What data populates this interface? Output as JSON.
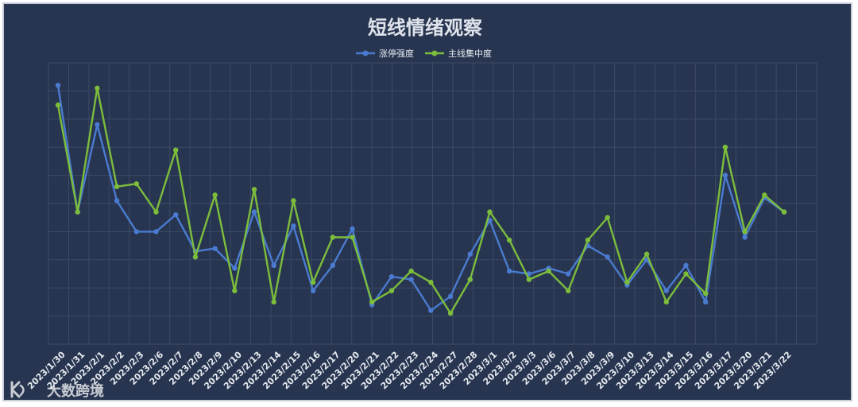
{
  "chart_data": {
    "type": "line",
    "title": "短线情绪观察",
    "xlabel": "",
    "ylabel": "",
    "ylim": [
      0,
      100
    ],
    "grid": true,
    "legend_position": "top-center",
    "categories": [
      "2023/1/30",
      "2023/1/31",
      "2023/2/1",
      "2023/2/2",
      "2023/2/3",
      "2023/2/6",
      "2023/2/7",
      "2023/2/8",
      "2023/2/9",
      "2023/2/10",
      "2023/2/13",
      "2023/2/14",
      "2023/2/15",
      "2023/2/16",
      "2023/2/17",
      "2023/2/20",
      "2023/2/21",
      "2023/2/22",
      "2023/2/23",
      "2023/2/24",
      "2023/2/27",
      "2023/2/28",
      "2023/3/1",
      "2023/3/2",
      "2023/3/3",
      "2023/3/6",
      "2023/3/7",
      "2023/3/8",
      "2023/3/9",
      "2023/3/10",
      "2023/3/13",
      "2023/3/14",
      "2023/3/15",
      "2023/3/16",
      "2023/3/17",
      "2023/3/20",
      "2023/3/21",
      "2023/3/22"
    ],
    "series": [
      {
        "name": "涨停强度",
        "color": "#4a7bd0",
        "values": [
          92,
          47,
          78,
          51,
          40,
          40,
          46,
          33,
          34,
          27,
          47,
          28,
          42,
          19,
          28,
          41,
          14,
          24,
          23,
          12,
          17,
          32,
          44,
          26,
          25,
          27,
          25,
          35,
          31,
          21,
          30,
          19,
          28,
          15,
          60,
          38,
          52,
          47
        ]
      },
      {
        "name": "主线集中度",
        "color": "#7cbd3c",
        "values": [
          85,
          47,
          91,
          56,
          57,
          47,
          69,
          31,
          53,
          19,
          55,
          15,
          51,
          22,
          38,
          38,
          15,
          19,
          26,
          22,
          11,
          23,
          47,
          37,
          23,
          26,
          19,
          37,
          45,
          22,
          32,
          15,
          25,
          18,
          70,
          40,
          53,
          47
        ]
      }
    ]
  },
  "watermark": {
    "text": "大数跨境"
  }
}
